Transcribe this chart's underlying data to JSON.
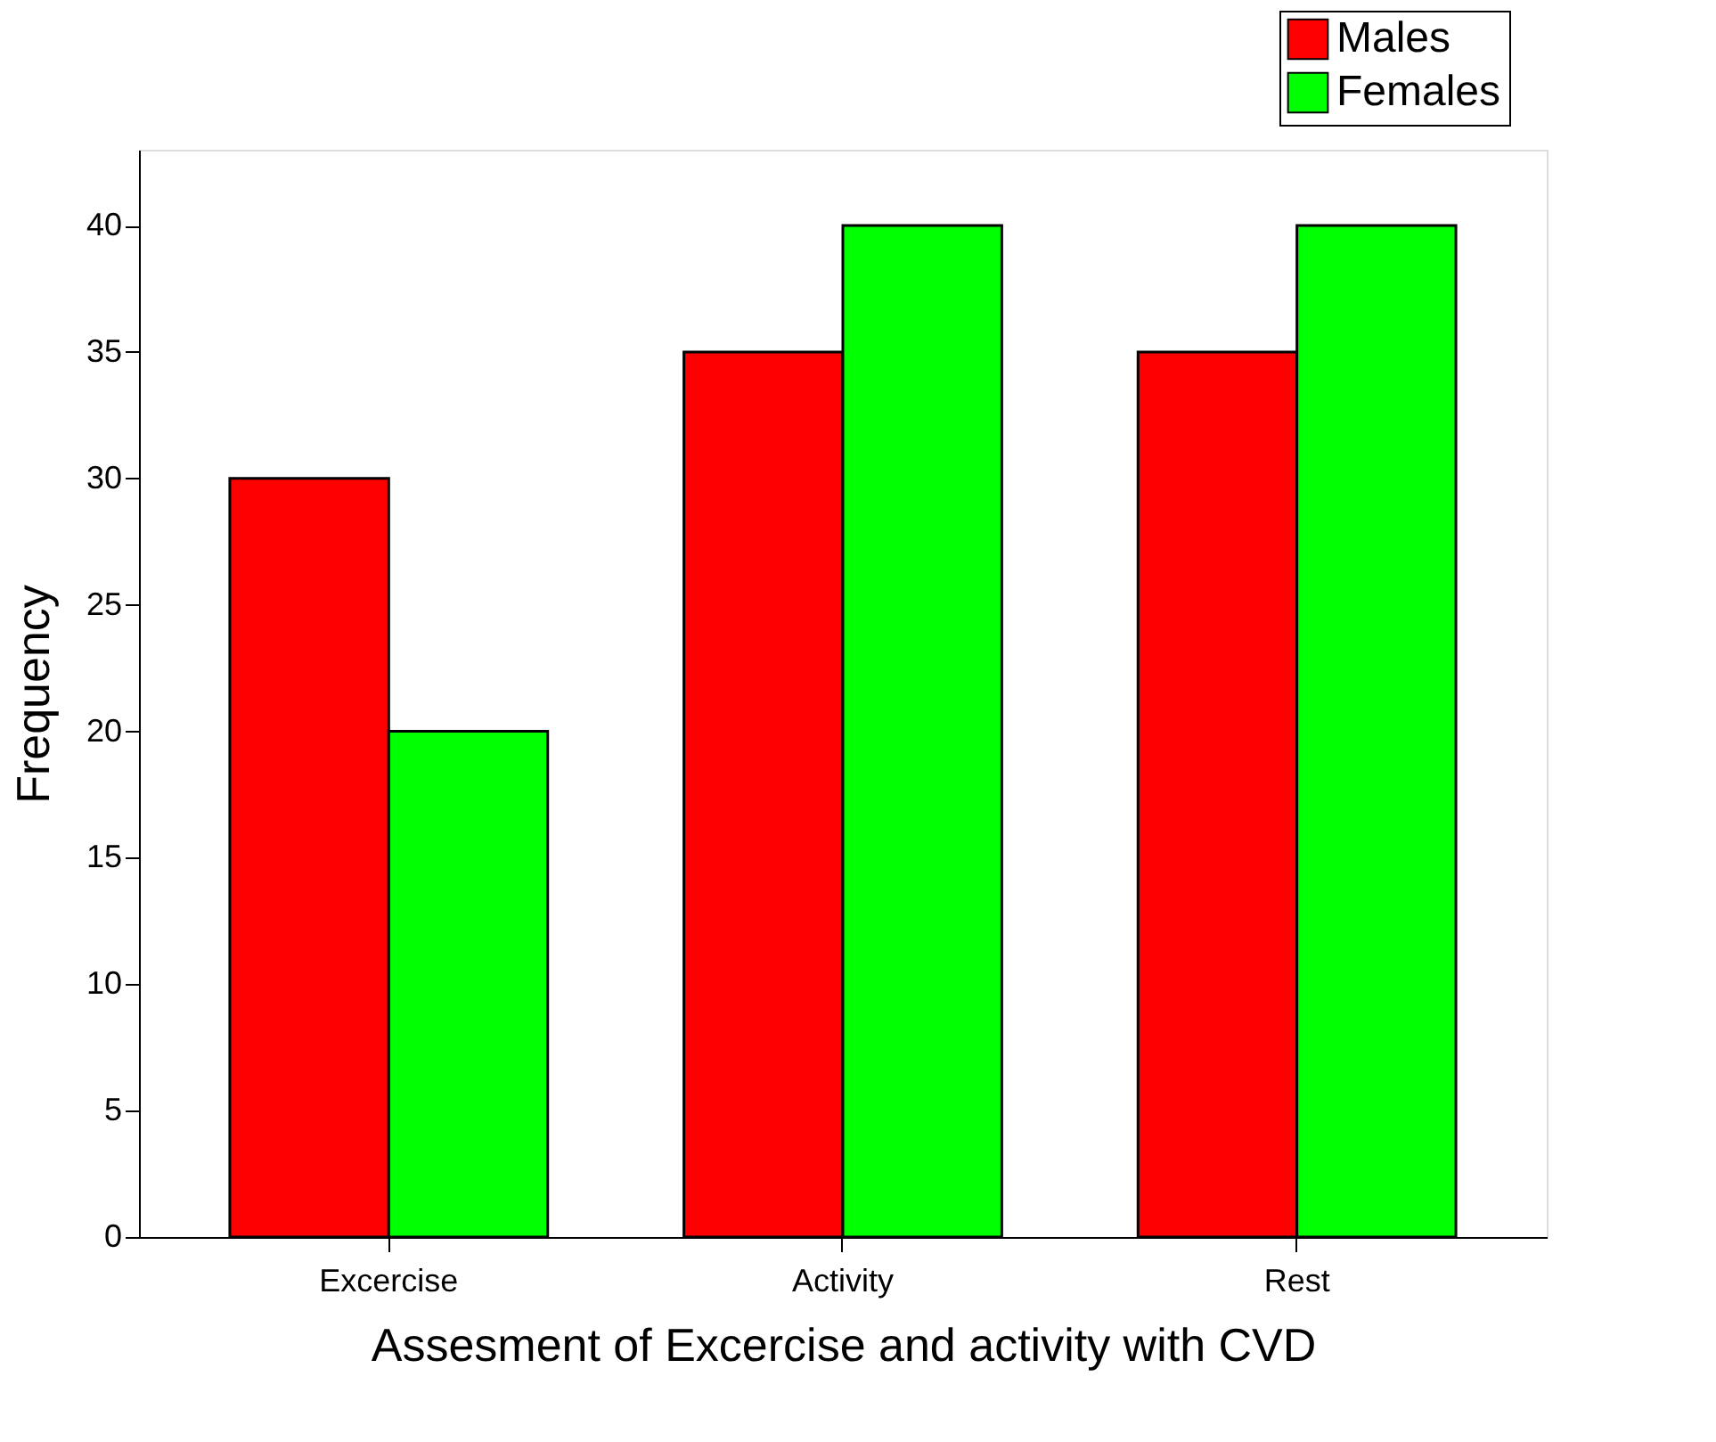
{
  "chart_data": {
    "type": "bar",
    "xlabel": "Assesment of Excercise and activity with CVD",
    "ylabel": "Frequency",
    "categories": [
      "Excercise",
      "Activity",
      "Rest"
    ],
    "series": [
      {
        "name": "Males",
        "color": "#ff0000",
        "values": [
          30,
          35,
          35
        ]
      },
      {
        "name": "Females",
        "color": "#00ff00",
        "values": [
          20,
          40,
          40
        ]
      }
    ],
    "ylim": [
      0,
      43
    ],
    "yticks": [
      0,
      5,
      10,
      15,
      20,
      25,
      30,
      35,
      40
    ],
    "grid": false,
    "legend": "top right"
  }
}
